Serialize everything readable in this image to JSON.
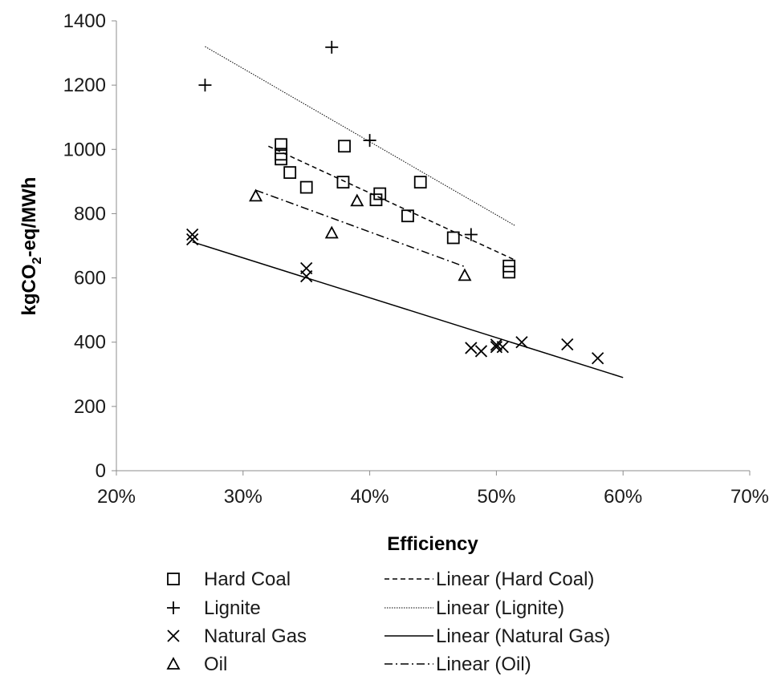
{
  "chart_data": {
    "type": "scatter",
    "xlabel": "Efficiency",
    "ylabel_parts": [
      "kgCO",
      "2",
      "-eq/MWh"
    ],
    "xlim": [
      0.2,
      0.7
    ],
    "ylim": [
      0,
      1400
    ],
    "x_ticks": [
      0.2,
      0.3,
      0.4,
      0.5,
      0.6,
      0.7
    ],
    "x_tick_labels": [
      "20%",
      "30%",
      "40%",
      "50%",
      "60%",
      "70%"
    ],
    "y_ticks": [
      0,
      200,
      400,
      600,
      800,
      1000,
      1200,
      1400
    ],
    "y_tick_labels": [
      "0",
      "200",
      "400",
      "600",
      "800",
      "1000",
      "1200",
      "1400"
    ],
    "grid": false,
    "legend_position": "bottom",
    "series": [
      {
        "name": "Hard Coal",
        "marker": "square",
        "points": [
          [
            0.33,
            1015
          ],
          [
            0.33,
            985
          ],
          [
            0.33,
            970
          ],
          [
            0.337,
            928
          ],
          [
            0.35,
            882
          ],
          [
            0.38,
            1010
          ],
          [
            0.379,
            898
          ],
          [
            0.405,
            843
          ],
          [
            0.408,
            862
          ],
          [
            0.43,
            793
          ],
          [
            0.44,
            898
          ],
          [
            0.466,
            725
          ],
          [
            0.51,
            637
          ],
          [
            0.51,
            618
          ]
        ]
      },
      {
        "name": "Lignite",
        "marker": "plus",
        "points": [
          [
            0.27,
            1200
          ],
          [
            0.37,
            1318
          ],
          [
            0.4,
            1028
          ],
          [
            0.48,
            735
          ]
        ]
      },
      {
        "name": "Natural Gas",
        "marker": "cross",
        "points": [
          [
            0.26,
            735
          ],
          [
            0.26,
            720
          ],
          [
            0.35,
            630
          ],
          [
            0.35,
            605
          ],
          [
            0.48,
            382
          ],
          [
            0.488,
            372
          ],
          [
            0.5,
            392
          ],
          [
            0.5,
            385
          ],
          [
            0.505,
            385
          ],
          [
            0.52,
            400
          ],
          [
            0.556,
            393
          ],
          [
            0.58,
            350
          ]
        ]
      },
      {
        "name": "Oil",
        "marker": "triangle",
        "points": [
          [
            0.31,
            855
          ],
          [
            0.37,
            740
          ],
          [
            0.39,
            840
          ],
          [
            0.475,
            608
          ]
        ]
      }
    ],
    "trendlines": [
      {
        "name": "Linear (Hard Coal)",
        "style": "dashed",
        "from": [
          0.32,
          1010
        ],
        "to": [
          0.515,
          655
        ]
      },
      {
        "name": "Linear (Lignite)",
        "style": "dotted",
        "from": [
          0.27,
          1320
        ],
        "to": [
          0.515,
          762
        ]
      },
      {
        "name": "Linear (Natural Gas)",
        "style": "solid",
        "from": [
          0.26,
          712
        ],
        "to": [
          0.6,
          290
        ]
      },
      {
        "name": "Linear (Oil)",
        "style": "dashdot",
        "from": [
          0.31,
          873
        ],
        "to": [
          0.475,
          635
        ]
      }
    ]
  }
}
